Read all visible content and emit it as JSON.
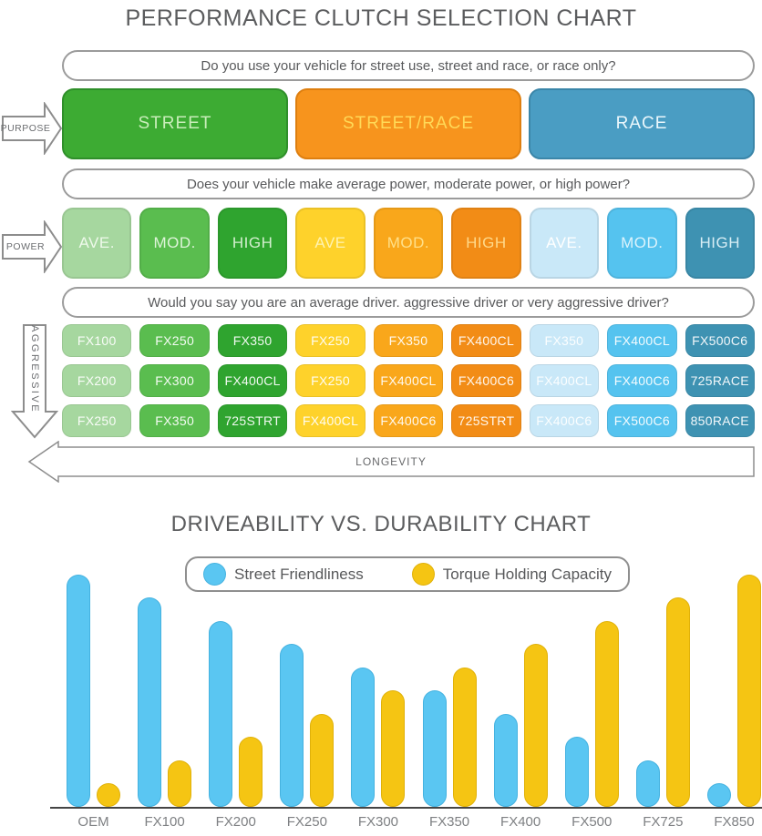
{
  "page": {
    "title": "PERFORMANCE CLUTCH SELECTION CHART",
    "text_gray": "#58595b"
  },
  "flowchart": {
    "questions": [
      "Do you use your vehicle for street use, street and race, or race only?",
      "Does your vehicle make average power, moderate power, or high power?",
      "Would you say you are an average driver. aggressive driver or very aggressive driver?"
    ],
    "arrows": {
      "purpose": "PURPOSE",
      "power": "POWER",
      "aggressive": "AGGRESSIVE",
      "longevity": "LONGEVITY"
    },
    "purpose_row": [
      {
        "label": "STREET",
        "bg": "#3dab33",
        "border": "#2f8f2a",
        "text_color": "#c9edba"
      },
      {
        "label": "STREET/RACE",
        "bg": "#f7941d",
        "border": "#de7f10",
        "text_color": "#ffd957"
      },
      {
        "label": "RACE",
        "bg": "#4a9dc3",
        "border": "#3b86a9",
        "text_color": "#eaf7fc"
      }
    ],
    "power_row": [
      {
        "label": "AVE.",
        "bg": "#a6d79f",
        "text_color": "#eef9ea"
      },
      {
        "label": "MOD.",
        "bg": "#5abd4f",
        "text_color": "#def4d9"
      },
      {
        "label": "HIGH",
        "bg": "#2fa42f",
        "text_color": "#d4efcf"
      },
      {
        "label": "AVE",
        "bg": "#fed22b",
        "text_color": "#fff3b0"
      },
      {
        "label": "MOD.",
        "bg": "#f9a71b",
        "text_color": "#ffe08a"
      },
      {
        "label": "HIGH",
        "bg": "#f28c16",
        "text_color": "#ffd98a"
      },
      {
        "label": "AVE.",
        "bg": "#c9e8f8",
        "text_color": "#ffffff"
      },
      {
        "label": "MOD.",
        "bg": "#55c3ef",
        "text_color": "#dbf3fc"
      },
      {
        "label": "HIGH",
        "bg": "#3e92b2",
        "text_color": "#d8eef5"
      }
    ],
    "matrix": {
      "column_colors": [
        "#a6d79f",
        "#5abd4f",
        "#2fa42f",
        "#fed22b",
        "#f9a71b",
        "#f28c16",
        "#c9e8f8",
        "#55c3ef",
        "#3e92b2"
      ],
      "text_color": "rgba(255,255,255,0.93)",
      "rows": [
        [
          "FX100",
          "FX250",
          "FX350",
          "FX250",
          "FX350",
          "FX400CL",
          "FX350",
          "FX400CL",
          "FX500C6"
        ],
        [
          "FX200",
          "FX300",
          "FX400CL",
          "FX250",
          "FX400CL",
          "FX400C6",
          "FX400CL",
          "FX400C6",
          "725RACE"
        ],
        [
          "FX250",
          "FX350",
          "725STRT",
          "FX400CL",
          "FX400C6",
          "725STRT",
          "FX400C6",
          "FX500C6",
          "850RACE"
        ]
      ]
    }
  },
  "chart": {
    "title": "DRIVEABILITY VS. DURABILITY CHART",
    "legend": [
      {
        "label": "Street Friendliness",
        "color": "#5ac6f2",
        "edge": "#45b2e0"
      },
      {
        "label": "Torque Holding Capacity",
        "color": "#f5c513",
        "edge": "#e0b109"
      }
    ],
    "axis_color": "#454545"
  },
  "chart_data": {
    "type": "bar",
    "title": "DRIVEABILITY VS. DURABILITY CHART",
    "categories": [
      "OEM",
      "FX100",
      "FX200",
      "FX250",
      "FX300",
      "FX350",
      "FX400",
      "FX500",
      "FX725",
      "FX850"
    ],
    "series": [
      {
        "name": "Street Friendliness",
        "color": "#5ac6f2",
        "values": [
          10,
          9,
          8,
          7,
          6,
          5,
          4,
          3,
          2,
          1
        ]
      },
      {
        "name": "Torque Holding Capacity",
        "color": "#f5c513",
        "values": [
          1,
          2,
          3,
          4,
          5,
          6,
          7,
          8,
          9,
          10
        ]
      }
    ],
    "xlabel": "",
    "ylabel": "",
    "ylim": [
      0,
      10
    ],
    "grid": false,
    "legend_position": "top-center",
    "y_axis_shown": false
  }
}
